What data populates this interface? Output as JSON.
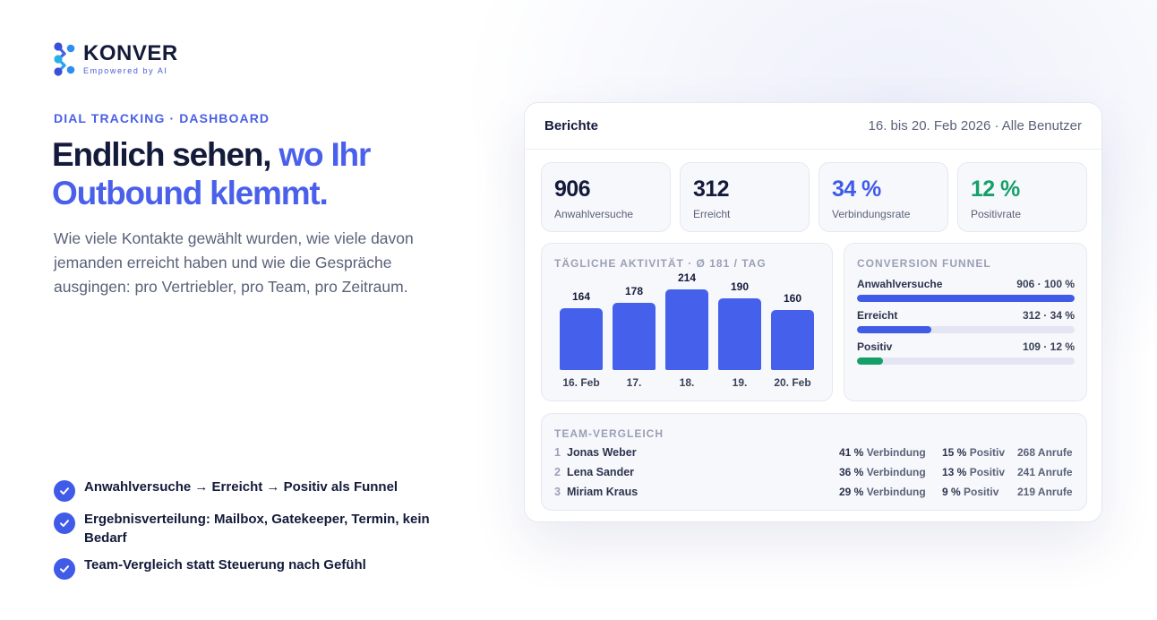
{
  "brand": {
    "name": "KONVER",
    "tagline": "Empowered by AI",
    "colors": {
      "primary": "#3f5be8",
      "dark": "#141a3a",
      "positive": "#15a06a"
    }
  },
  "hero": {
    "eyebrow": "DIAL TRACKING · DASHBOARD",
    "headline_dark": "Endlich sehen, ",
    "headline_accent": "wo Ihr Outbound klemmt.",
    "intro": "Wie viele Kontakte gewählt wurden, wie viele davon jemanden erreicht haben und wie die Gespräche ausgingen: pro Vertriebler, pro Team, pro Zeitraum."
  },
  "features": [
    {
      "icon": "check-circle-icon",
      "text": "Anwahlversuche → Erreicht → Positiv als Funnel"
    },
    {
      "icon": "check-circle-icon",
      "text": "Ergebnisverteilung: Mailbox, Gatekeeper, Termin, kein Bedarf"
    },
    {
      "icon": "check-circle-icon",
      "text": "Team-Vergleich statt Steuerung nach Gefühl"
    }
  ],
  "dashboard": {
    "title": "Berichte",
    "meta": "16. bis 20. Feb 2026 · Alle Benutzer",
    "kpis": [
      {
        "value": "906",
        "label": "Anwahlversuche"
      },
      {
        "value": "312",
        "label": "Erreicht"
      },
      {
        "value": "34 %",
        "label": "Verbindungsrate"
      },
      {
        "value": "12 %",
        "label": "Positivrate"
      }
    ],
    "activity_title": "TÄGLICHE AKTIVITÄT · Ø 181 / TAG",
    "funnel": {
      "title": "CONVERSION FUNNEL",
      "rows": [
        {
          "label": "Anwahlversuche",
          "value": "906 · 100 %",
          "fraction": 1.0
        },
        {
          "label": "Erreicht",
          "value": "312 · 34 %",
          "fraction": 0.34
        },
        {
          "label": "Positiv",
          "value": "109 · 12 %",
          "fraction": 0.12
        }
      ]
    },
    "team": {
      "title": "TEAM-VERGLEICH",
      "rows": [
        {
          "rank": "1",
          "name": "Jonas Weber",
          "conn_pct": "41 %",
          "conn_label": "Verbindung",
          "pos_pct": "15 %",
          "pos_label": "Positiv",
          "calls": "268 Anrufe"
        },
        {
          "rank": "2",
          "name": "Lena Sander",
          "conn_pct": "36 %",
          "conn_label": "Verbindung",
          "pos_pct": "13 %",
          "pos_label": "Positiv",
          "calls": "241 Anrufe"
        },
        {
          "rank": "3",
          "name": "Miriam Kraus",
          "conn_pct": "29 %",
          "conn_label": "Verbindung",
          "pos_pct": "9 %",
          "pos_label": "Positiv",
          "calls": "219 Anrufe"
        }
      ]
    }
  },
  "chart_data": {
    "type": "bar",
    "title": "TÄGLICHE AKTIVITÄT · Ø 181 / TAG",
    "categories": [
      "16. Feb",
      "17.",
      "18.",
      "19.",
      "20. Feb"
    ],
    "values": [
      164,
      178,
      214,
      190,
      160
    ],
    "xlabel": "",
    "ylabel": "",
    "ylim": [
      0,
      214
    ],
    "grid": false
  }
}
